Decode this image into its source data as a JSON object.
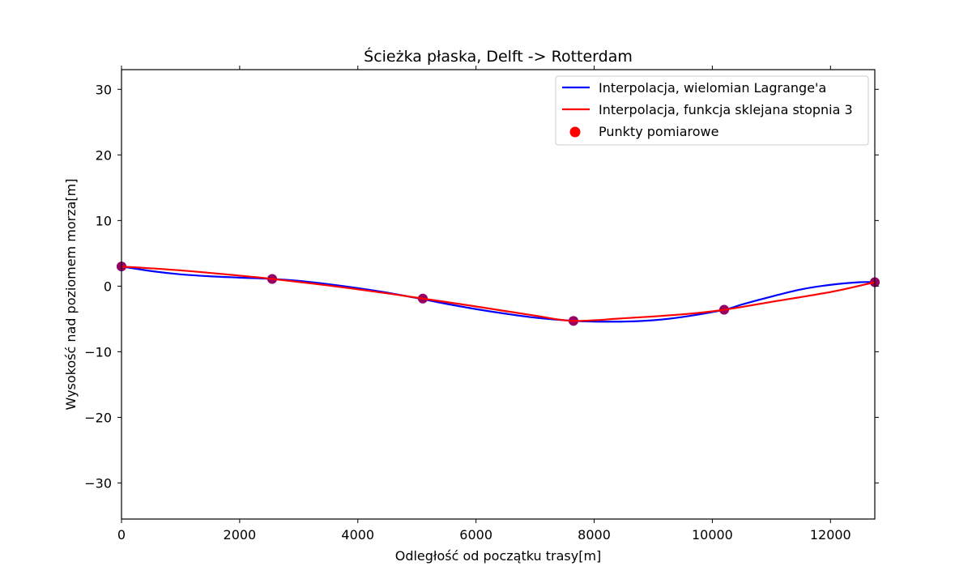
{
  "chart_data": {
    "type": "line",
    "title": "Ścieżka płaska, Delft -> Rotterdam",
    "xlabel": "Odległość od początku trasy[m]",
    "ylabel": "Wysokość nad poziomem morza[m]",
    "xlim": [
      0,
      12750
    ],
    "ylim": [
      -35.5,
      33
    ],
    "xticks": [
      0,
      2000,
      4000,
      6000,
      8000,
      10000,
      12000
    ],
    "xtick_labels": [
      "0",
      "2000",
      "4000",
      "6000",
      "8000",
      "10000",
      "12000"
    ],
    "yticks": [
      30,
      20,
      10,
      0,
      -10,
      -20,
      -30
    ],
    "ytick_labels": [
      "30",
      "20",
      "10",
      "0",
      "−10",
      "−20",
      "−30"
    ],
    "grid": false,
    "legend_position": "top-right",
    "series": [
      {
        "name": "Interpolacja, wielomian Lagrange'a",
        "kind": "line",
        "color": "#0000ff",
        "x": [
          0,
          500,
          1000,
          1500,
          2000,
          2550,
          3000,
          3500,
          4000,
          4500,
          5100,
          5500,
          6000,
          6500,
          7000,
          7650,
          8000,
          8500,
          9000,
          9500,
          10200,
          10500,
          11000,
          11500,
          12000,
          12500,
          12750
        ],
        "y": [
          3.0,
          2.3,
          1.8,
          1.5,
          1.3,
          1.1,
          0.8,
          0.3,
          -0.3,
          -1.0,
          -2.0,
          -2.7,
          -3.5,
          -4.2,
          -4.8,
          -5.3,
          -5.4,
          -5.4,
          -5.2,
          -4.7,
          -3.6,
          -2.8,
          -1.6,
          -0.5,
          0.2,
          0.6,
          0.6
        ]
      },
      {
        "name": "Interpolacja, funkcja sklejana stopnia 3",
        "kind": "line",
        "color": "#ff0000",
        "x": [
          0,
          1000,
          2000,
          2550,
          3500,
          4500,
          5100,
          6000,
          7000,
          7650,
          8500,
          9500,
          10200,
          11000,
          12000,
          12750
        ],
        "y": [
          3.0,
          2.4,
          1.6,
          1.1,
          0.1,
          -1.1,
          -1.9,
          -3.1,
          -4.5,
          -5.3,
          -4.9,
          -4.3,
          -3.6,
          -2.4,
          -0.9,
          0.6
        ]
      },
      {
        "name": "Punkty pomiarowe",
        "kind": "scatter",
        "color": "#ff0000",
        "x": [
          0,
          2550,
          5100,
          7650,
          10200,
          12750
        ],
        "y": [
          3.0,
          1.1,
          -1.9,
          -5.3,
          -3.6,
          0.6
        ]
      }
    ]
  }
}
